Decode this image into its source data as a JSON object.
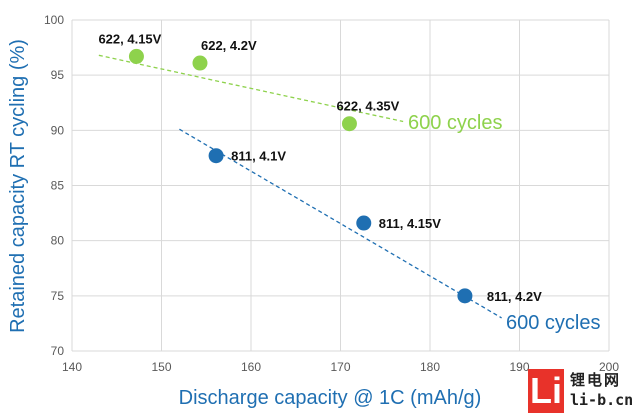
{
  "chart_data": {
    "type": "scatter",
    "xlabel": "Discharge capacity @ 1C (mAh/g)",
    "ylabel": "Retained capacity RT cycling (%)",
    "xlim": [
      140,
      200
    ],
    "ylim": [
      70,
      100
    ],
    "x_ticks": [
      "140",
      "150",
      "160",
      "170",
      "180",
      "190",
      "200"
    ],
    "y_ticks": [
      "70",
      "75",
      "80",
      "85",
      "90",
      "95",
      "100"
    ],
    "grid": true,
    "series": [
      {
        "color": "#8ed24c",
        "annotation": "600 cycles",
        "points": [
          {
            "x": 147.2,
            "y": 96.7,
            "label": "622, 4.15V"
          },
          {
            "x": 154.3,
            "y": 96.1,
            "label": "622, 4.2V"
          },
          {
            "x": 171.0,
            "y": 90.6,
            "label": "622, 4.35V"
          }
        ],
        "trendline": {
          "x": [
            143,
            177
          ],
          "y": [
            96.8,
            90.8
          ]
        }
      },
      {
        "color": "#1f6fb2",
        "annotation": "600 cycles",
        "points": [
          {
            "x": 156.1,
            "y": 87.7,
            "label": "811, 4.1V"
          },
          {
            "x": 172.6,
            "y": 81.6,
            "label": "811, 4.15V"
          },
          {
            "x": 183.9,
            "y": 75.0,
            "label": "811, 4.2V"
          }
        ],
        "trendline": {
          "x": [
            152,
            188
          ],
          "y": [
            90.1,
            73.0
          ]
        }
      }
    ]
  },
  "watermark": {
    "mark": "Li",
    "cn_text": "锂电网",
    "url": "li-b.cn"
  }
}
